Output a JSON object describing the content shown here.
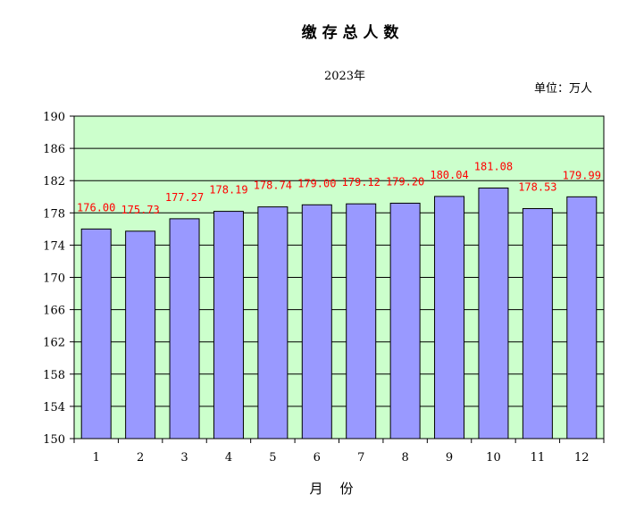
{
  "chart_data": {
    "type": "bar",
    "title": "缴 存 总 人 数",
    "subtitle": "2023年",
    "unit_label": "单位：万人",
    "xlabel": "月    份",
    "ylabel": "",
    "categories": [
      "1",
      "2",
      "3",
      "4",
      "5",
      "6",
      "7",
      "8",
      "9",
      "10",
      "11",
      "12"
    ],
    "values": [
      176.0,
      175.73,
      177.27,
      178.19,
      178.74,
      179.0,
      179.12,
      179.2,
      180.04,
      181.08,
      178.53,
      179.99
    ],
    "data_labels": [
      "176.00",
      "175.73",
      "177.27",
      "178.19",
      "178.74",
      "179.00",
      "179.12",
      "179.20",
      "180.04",
      "181.08",
      "178.53",
      "179.99"
    ],
    "ylim": [
      150,
      190
    ],
    "yticks": [
      150,
      154,
      158,
      162,
      166,
      170,
      174,
      178,
      182,
      186,
      190
    ],
    "ytick_labels": [
      "150",
      "154",
      "158",
      "162",
      "166",
      "170",
      "174",
      "178",
      "182",
      "186",
      "190"
    ],
    "grid": true,
    "legend": "none",
    "colors": {
      "plot_background": "#ccffcc",
      "bar_fill": "#9999ff",
      "bar_edge": "#000000",
      "data_label": "#ff0000",
      "grid": "#000000"
    }
  }
}
